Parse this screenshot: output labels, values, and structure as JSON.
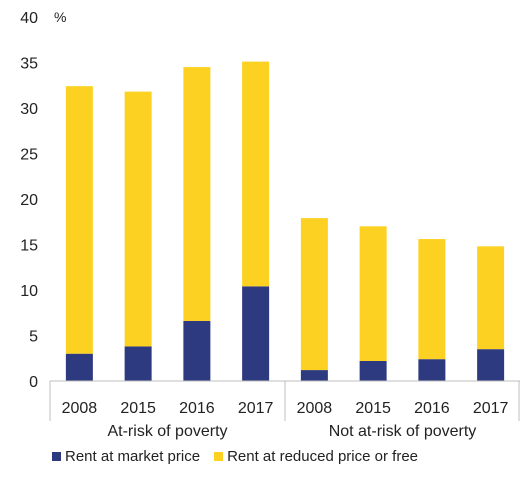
{
  "chart_data": {
    "type": "bar",
    "stacked": true,
    "unit_label": "%",
    "ylim": [
      0,
      40
    ],
    "yticks": [
      0,
      5,
      10,
      15,
      20,
      25,
      30,
      35,
      40
    ],
    "grid": false,
    "legend_position": "bottom",
    "groups": [
      {
        "label": "At-risk of poverty",
        "categories": [
          "2008",
          "2015",
          "2016",
          "2017"
        ]
      },
      {
        "label": "Not at-risk of poverty",
        "categories": [
          "2008",
          "2015",
          "2016",
          "2017"
        ]
      }
    ],
    "categories": [
      "2008",
      "2015",
      "2016",
      "2017",
      "2008",
      "2015",
      "2016",
      "2017"
    ],
    "series": [
      {
        "name": "Rent at market price",
        "color": "#2e3a80",
        "values": [
          3.0,
          3.8,
          6.6,
          10.4,
          1.2,
          2.2,
          2.4,
          3.5
        ]
      },
      {
        "name": "Rent at reduced price or free",
        "color": "#fdd122",
        "values": [
          29.4,
          28.0,
          27.9,
          24.7,
          16.7,
          14.8,
          13.2,
          11.3
        ]
      }
    ]
  }
}
